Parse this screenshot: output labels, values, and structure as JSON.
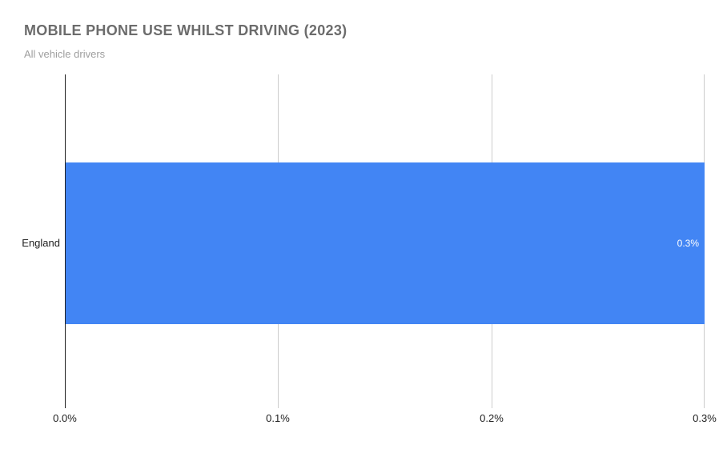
{
  "header": {
    "title": "MOBILE PHONE USE WHILST DRIVING (2023)",
    "subtitle": "All vehicle drivers"
  },
  "chart_data": {
    "type": "bar",
    "orientation": "horizontal",
    "title": "MOBILE PHONE USE WHILST DRIVING (2023)",
    "subtitle": "All vehicle drivers",
    "categories": [
      "England"
    ],
    "values": [
      0.3
    ],
    "value_labels": [
      "0.3%"
    ],
    "xlabel": "",
    "ylabel": "",
    "xlim": [
      0,
      0.3
    ],
    "x_ticks": [
      0,
      0.1,
      0.2,
      0.3
    ],
    "x_tick_labels": [
      "0.0%",
      "0.1%",
      "0.2%",
      "0.3%"
    ],
    "grid": true,
    "legend": false,
    "colors": {
      "bar": "#4285f4",
      "bar_value_label": "#ffffff",
      "gridline": "#cccccc",
      "axis_line": "#212121",
      "tick_label": "#212121",
      "category_label": "#212121",
      "title": "#6c6c6c",
      "subtitle": "#9e9e9e",
      "background": "#ffffff"
    }
  }
}
